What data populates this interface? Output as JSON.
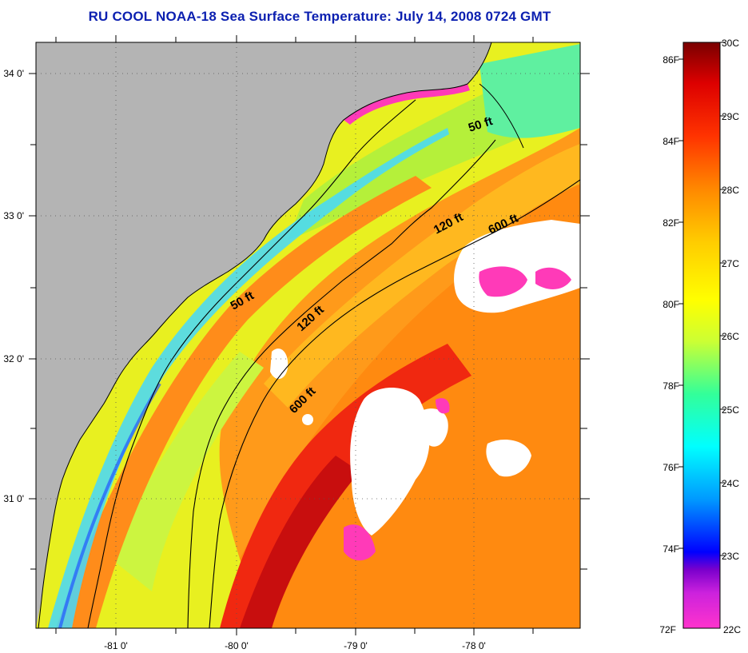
{
  "title": "RU COOL  NOAA-18  Sea Surface Temperature:  July 14, 2008 0724 GMT",
  "axes": {
    "lon_labels": [
      "-81 0'",
      "-80 0'",
      "-79 0'",
      "-78 0'"
    ],
    "lat_labels": [
      "34 0'",
      "33 0'",
      "32 0'",
      "31 0'"
    ]
  },
  "isobaths": [
    "50 ft",
    "50 ft",
    "120 ft",
    "120 ft",
    "600 ft",
    "600 ft"
  ],
  "colorbar": {
    "fahrenheit": [
      "86F",
      "84F",
      "82F",
      "80F",
      "78F",
      "76F",
      "74F",
      "72F"
    ],
    "celsius": [
      "30C",
      "29C",
      "28C",
      "27C",
      "26C",
      "25C",
      "24C",
      "23C",
      "22C"
    ],
    "colors": [
      "#ff33cc",
      "#7a00cc",
      "#0000ff",
      "#0099ff",
      "#00ffff",
      "#33ff99",
      "#ccff33",
      "#ffff00",
      "#ffcc00",
      "#ff8800",
      "#ff3300",
      "#dd0000",
      "#7a0000"
    ]
  },
  "colors": {
    "land": "#b4b4b4",
    "cloud": "#ffffff",
    "title": "#0b1fb0"
  }
}
